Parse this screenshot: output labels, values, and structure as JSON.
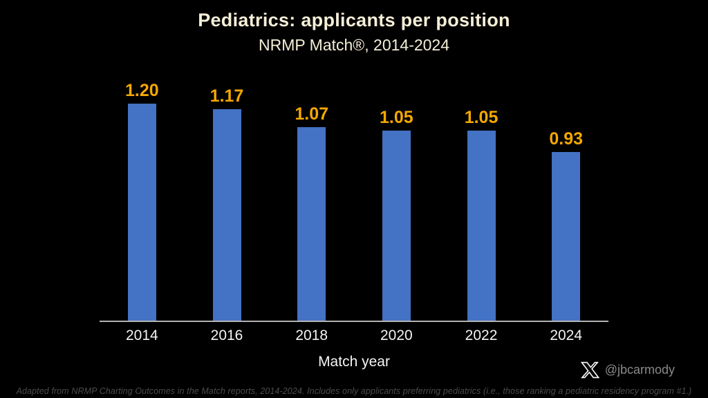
{
  "header": {
    "title": "Pediatrics: applicants per position",
    "subtitle": "NRMP Match®, 2014-2024"
  },
  "chart_data": {
    "type": "bar",
    "categories": [
      "2014",
      "2016",
      "2018",
      "2020",
      "2022",
      "2024"
    ],
    "values": [
      1.2,
      1.17,
      1.07,
      1.05,
      1.05,
      0.93
    ],
    "value_labels": [
      "1.20",
      "1.17",
      "1.07",
      "1.05",
      "1.05",
      "0.93"
    ],
    "title": "Pediatrics: applicants per position",
    "subtitle": "NRMP Match®, 2014-2024",
    "xlabel": "Match year",
    "ylabel": "",
    "ylim": [
      0,
      1.39
    ],
    "grid": false,
    "legend": false,
    "bar_color": "#4472C4",
    "value_label_color": "#F5A800",
    "axis_line_color": "#b5b5b5",
    "tick_label_color": "#F4F4F4",
    "background_color": "#000000"
  },
  "footer": {
    "credit_handle": "@jbcarmody",
    "x_logo": "x-twitter-icon",
    "footnote": "Adapted from NRMP Charting Outcomes in the Match reports, 2014-2024. Includes only applicants preferring pediatrics (i.e., those ranking a pediatric residency program #1.)"
  }
}
